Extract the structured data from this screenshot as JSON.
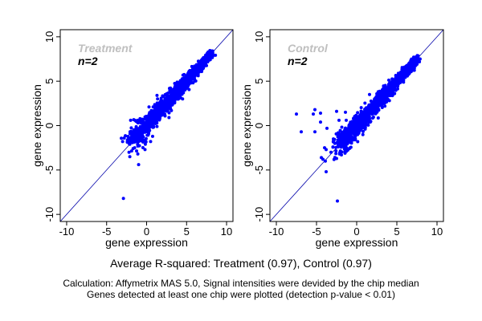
{
  "chart_data": [
    {
      "type": "scatter",
      "title": "Treatment",
      "annotation": "n=2",
      "xlabel": "gene expression",
      "ylabel": "gene expression",
      "xlim": [
        -10.8,
        10.8
      ],
      "ylim": [
        -10.8,
        10.8
      ],
      "xticks": [
        -10,
        -5,
        0,
        5,
        10
      ],
      "yticks": [
        -10,
        -5,
        0,
        5,
        10
      ],
      "reference_line": "y = x",
      "grid": false,
      "point_color": "#0000ff",
      "cluster": {
        "x_range": [
          -2.5,
          8.2
        ],
        "description": "dense diagonal cloud"
      },
      "points": [
        [
          -2.9,
          -8.2
        ],
        [
          -1.0,
          -4.4
        ],
        [
          -2.1,
          -3.5
        ],
        [
          -1.1,
          -3.2
        ],
        [
          -2.2,
          -3.0
        ],
        [
          -3.0,
          -1.8
        ],
        [
          -2.8,
          -1.4
        ],
        [
          -2.0,
          0.6
        ],
        [
          -1.1,
          0.6
        ],
        [
          -0.2,
          -2.7
        ],
        [
          1.3,
          3.4
        ],
        [
          0.3,
          2.1
        ],
        [
          2.0,
          1.5
        ],
        [
          3.1,
          1.7
        ],
        [
          2.8,
          0.9
        ],
        [
          1.3,
          -0.1
        ],
        [
          6.0,
          5.0
        ],
        [
          4.5,
          3.0
        ],
        [
          0.5,
          -1.8
        ],
        [
          -1.5,
          -2.5
        ]
      ]
    },
    {
      "type": "scatter",
      "title": "Control",
      "annotation": "n=2",
      "xlabel": "gene expression",
      "ylabel": "gene expression",
      "xlim": [
        -10.8,
        10.8
      ],
      "ylim": [
        -10.8,
        10.8
      ],
      "xticks": [
        -10,
        -5,
        0,
        5,
        10
      ],
      "yticks": [
        -10,
        -5,
        0,
        5,
        10
      ],
      "reference_line": "y = x",
      "grid": false,
      "point_color": "#0000ff",
      "cluster": {
        "x_range": [
          -3.0,
          7.6
        ],
        "description": "dense diagonal cloud"
      },
      "points": [
        [
          -7.5,
          1.3
        ],
        [
          -6.9,
          -0.7
        ],
        [
          -5.2,
          1.8
        ],
        [
          -5.4,
          1.3
        ],
        [
          -5.2,
          -0.7
        ],
        [
          -4.5,
          1.4
        ],
        [
          -4.5,
          0.4
        ],
        [
          -3.7,
          -0.3
        ],
        [
          -2.5,
          1.6
        ],
        [
          -1.4,
          1.5
        ],
        [
          -1.3,
          0.6
        ],
        [
          -2.2,
          0.6
        ],
        [
          -4.0,
          -2.5
        ],
        [
          -3.8,
          -2.7
        ],
        [
          -4.4,
          -3.6
        ],
        [
          -4.2,
          -3.8
        ],
        [
          -3.9,
          -4.0
        ],
        [
          -3.8,
          -5.2
        ],
        [
          -2.4,
          -8.5
        ],
        [
          -2.5,
          -3.7
        ],
        [
          -3.2,
          -3.0
        ],
        [
          -2.9,
          -1.5
        ],
        [
          -1.9,
          -3.3
        ],
        [
          1.6,
          3.5
        ],
        [
          2.9,
          2.3
        ]
      ]
    }
  ],
  "footer": {
    "summary": "Average R-squared: Treatment (0.97), Control (0.97)",
    "note_line1": "Calculation: Affymetrix MAS 5.0, Signal intensities were devided by the chip median",
    "note_line2": "Genes detected at least one chip were plotted (detection p-value < 0.01)"
  }
}
